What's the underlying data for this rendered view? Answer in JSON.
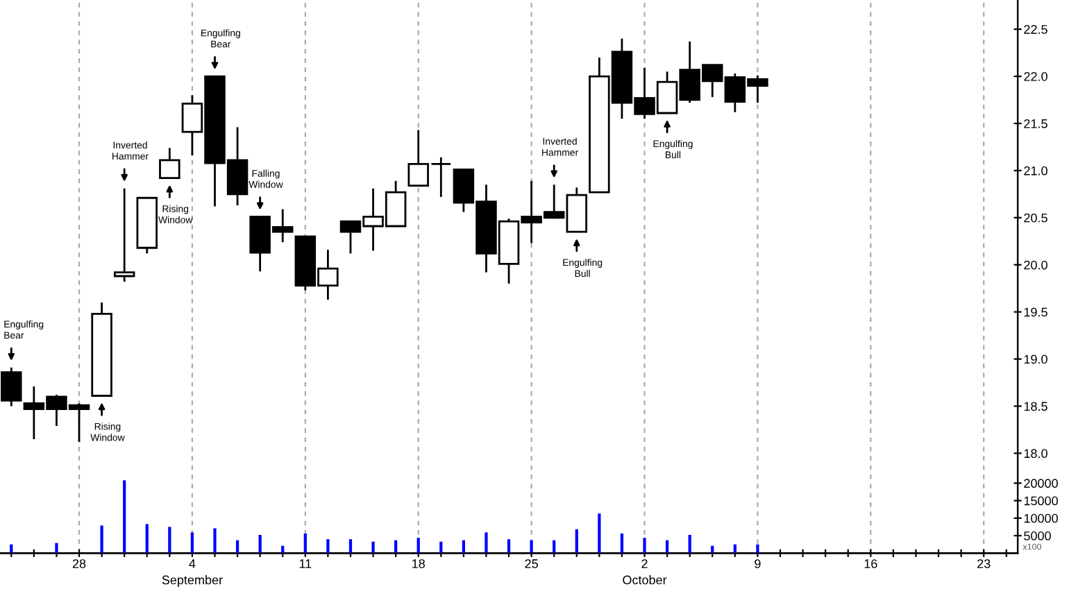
{
  "chart_data": {
    "type": "candlestick",
    "categories": [
      null,
      null,
      null,
      "28",
      null,
      null,
      null,
      null,
      "4\nSeptember",
      null,
      null,
      null,
      null,
      "11",
      null,
      null,
      null,
      null,
      "18",
      null,
      null,
      null,
      null,
      "25",
      null,
      null,
      null,
      null,
      "2\nOctober",
      null,
      null,
      null,
      null,
      "9",
      null,
      null,
      null,
      null,
      "16",
      null,
      null,
      null,
      null,
      "23",
      null
    ],
    "ohlc": [
      [
        18.86,
        18.91,
        18.5,
        18.56
      ],
      [
        18.53,
        18.71,
        18.15,
        18.47
      ],
      [
        18.6,
        18.62,
        18.29,
        18.47
      ],
      [
        18.51,
        18.53,
        18.12,
        18.47
      ],
      [
        18.61,
        19.6,
        18.61,
        19.48
      ],
      [
        19.88,
        20.81,
        19.82,
        19.92
      ],
      [
        20.18,
        20.71,
        20.12,
        20.71
      ],
      [
        20.92,
        21.24,
        20.92,
        21.11
      ],
      [
        21.41,
        21.8,
        21.16,
        21.71
      ],
      [
        22.0,
        22.0,
        20.62,
        21.08
      ],
      [
        21.11,
        21.46,
        20.63,
        20.75
      ],
      [
        20.51,
        20.51,
        19.93,
        20.13
      ],
      [
        20.4,
        20.59,
        20.24,
        20.35
      ],
      [
        20.3,
        20.3,
        19.73,
        19.78
      ],
      [
        19.78,
        20.16,
        19.63,
        19.96
      ],
      [
        20.46,
        20.46,
        20.12,
        20.35
      ],
      [
        20.41,
        20.81,
        20.15,
        20.51
      ],
      [
        20.41,
        20.89,
        20.41,
        20.77
      ],
      [
        20.84,
        21.43,
        20.84,
        21.07
      ],
      [
        21.07,
        21.14,
        20.72,
        21.07
      ],
      [
        21.01,
        21.01,
        20.56,
        20.66
      ],
      [
        20.67,
        20.85,
        19.92,
        20.12
      ],
      [
        20.01,
        20.49,
        19.8,
        20.46
      ],
      [
        20.51,
        20.89,
        20.23,
        20.45
      ],
      [
        20.56,
        20.85,
        20.49,
        20.5
      ],
      [
        20.35,
        20.82,
        20.35,
        20.74
      ],
      [
        20.77,
        22.2,
        20.77,
        22.0
      ],
      [
        22.26,
        22.4,
        21.55,
        21.72
      ],
      [
        21.77,
        22.09,
        21.55,
        21.6
      ],
      [
        21.61,
        22.05,
        21.61,
        21.94
      ],
      [
        22.07,
        22.37,
        21.72,
        21.75
      ],
      [
        22.12,
        22.12,
        21.78,
        21.95
      ],
      [
        21.99,
        22.03,
        21.62,
        21.73
      ],
      [
        21.97,
        22.01,
        21.72,
        21.9
      ],
      null,
      null,
      null,
      null,
      null,
      null,
      null,
      null,
      null,
      null,
      null
    ],
    "series": [
      {
        "type": "bar",
        "axis": "y2",
        "color": "#0000ff",
        "values": [
          2500,
          null,
          2900,
          null,
          7900,
          20800,
          8300,
          7500,
          5900,
          7100,
          3700,
          5200,
          2100,
          5600,
          4000,
          4000,
          3300,
          3700,
          4400,
          3300,
          3700,
          5900,
          4000,
          3700,
          3700,
          6800,
          11300,
          5600,
          4400,
          3700,
          5200,
          2100,
          2500,
          2500,
          null,
          null,
          null,
          null,
          null,
          null,
          null,
          null,
          null,
          null,
          null
        ]
      }
    ],
    "ylim": [
      16.94,
      22.81
    ],
    "yticks": [
      {
        "value": 18,
        "label": "18.0"
      },
      {
        "value": 18.5,
        "label": "18.5"
      },
      {
        "value": 19,
        "label": "19.0"
      },
      {
        "value": 19.5,
        "label": "19.5"
      },
      {
        "value": 20,
        "label": "20.0"
      },
      {
        "value": 20.5,
        "label": "20.5"
      },
      {
        "value": 21,
        "label": "21.0"
      },
      {
        "value": 21.5,
        "label": "21.5"
      },
      {
        "value": 22,
        "label": "22.0"
      },
      {
        "value": 22.5,
        "label": "22.5"
      }
    ],
    "y2lim": [
      0,
      158000
    ],
    "y2ticks": [
      5000,
      10000,
      15000,
      20000
    ],
    "grid": "x",
    "annotations": [
      "Engulfing\nBear",
      "Rising\nWindow",
      "Inverted\nHammer",
      "Rising\nWindow",
      "Engulfing\nBear",
      "Falling\nWindow",
      "Inverted\nHammer",
      "Engulfing\nBull",
      "Engulfing\nBull",
      "x100"
    ]
  }
}
